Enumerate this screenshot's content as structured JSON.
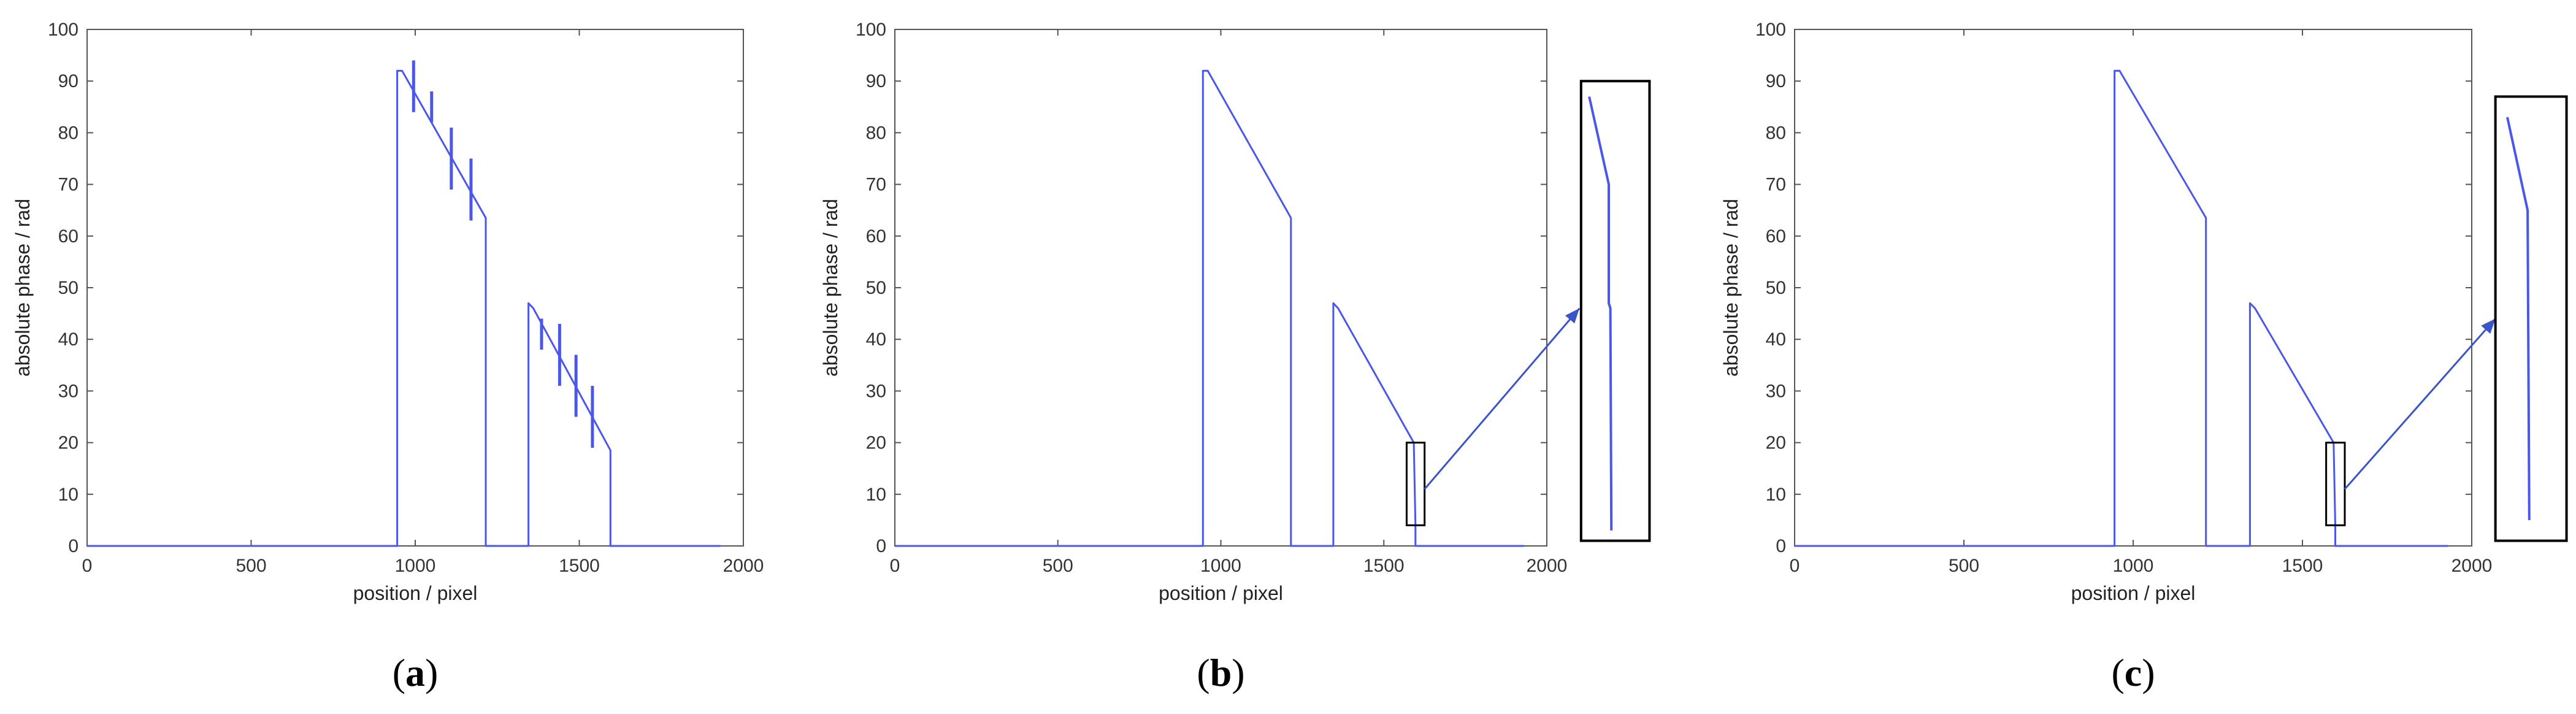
{
  "chart_data": [
    {
      "panel": "a",
      "type": "line",
      "caption": {
        "open": "(",
        "letter": "a",
        "close": ")"
      },
      "xlabel": "position / pixel",
      "ylabel": "absolute phase / rad",
      "xlim": [
        0,
        2000
      ],
      "ylim": [
        0,
        100
      ],
      "xticks": [
        0,
        500,
        1000,
        1500,
        2000
      ],
      "yticks": [
        0,
        10,
        20,
        30,
        40,
        50,
        60,
        70,
        80,
        90,
        100
      ],
      "grid": false,
      "series": [
        {
          "color": "#4a57e8",
          "points": [
            [
              0,
              0
            ],
            [
              945,
              0
            ],
            [
              945,
              92
            ],
            [
              960,
              92
            ],
            [
              1215,
              63.5
            ],
            [
              1215,
              0
            ],
            [
              1345,
              0
            ],
            [
              1345,
              47
            ],
            [
              1360,
              46
            ],
            [
              1595,
              18.5
            ],
            [
              1595,
              0
            ],
            [
              1930,
              0
            ]
          ]
        }
      ],
      "spikes": [
        {
          "x": 995,
          "y1": 84,
          "y2": 94
        },
        {
          "x": 1050,
          "y1": 82,
          "y2": 88
        },
        {
          "x": 1110,
          "y1": 69,
          "y2": 81
        },
        {
          "x": 1170,
          "y1": 63,
          "y2": 75
        },
        {
          "x": 1385,
          "y1": 38,
          "y2": 44
        },
        {
          "x": 1440,
          "y1": 31,
          "y2": 43
        },
        {
          "x": 1490,
          "y1": 25,
          "y2": 37
        },
        {
          "x": 1540,
          "y1": 19,
          "y2": 31
        }
      ]
    },
    {
      "panel": "b",
      "type": "line",
      "caption": {
        "open": "(",
        "letter": "b",
        "close": ")"
      },
      "xlabel": "position / pixel",
      "ylabel": "absolute phase / rad",
      "xlim": [
        0,
        2000
      ],
      "ylim": [
        0,
        100
      ],
      "xticks": [
        0,
        500,
        1000,
        1500,
        2000
      ],
      "yticks": [
        0,
        10,
        20,
        30,
        40,
        50,
        60,
        70,
        80,
        90,
        100
      ],
      "grid": false,
      "series": [
        {
          "color": "#4a57e8",
          "points": [
            [
              0,
              0
            ],
            [
              945,
              0
            ],
            [
              945,
              92
            ],
            [
              960,
              92
            ],
            [
              1215,
              63.5
            ],
            [
              1215,
              0
            ],
            [
              1345,
              0
            ],
            [
              1345,
              47
            ],
            [
              1360,
              46
            ],
            [
              1592,
              20
            ],
            [
              1597,
              4
            ],
            [
              1597,
              0
            ],
            [
              1930,
              0
            ]
          ]
        }
      ],
      "highlight_box": {
        "x0": 1570,
        "x1": 1625,
        "y0": 4,
        "y1": 20
      },
      "inset": {
        "box": {
          "x0": 2105,
          "x1": 2315,
          "y0": 1,
          "y1": 90
        },
        "curve": [
          [
            2130,
            87
          ],
          [
            2190,
            70
          ],
          [
            2190,
            47
          ],
          [
            2195,
            46
          ],
          [
            2198,
            3
          ]
        ],
        "arrow": {
          "from": [
            1625,
            11
          ],
          "to": [
            2100,
            46
          ]
        }
      }
    },
    {
      "panel": "c",
      "type": "line",
      "caption": {
        "open": "(",
        "letter": "c",
        "close": ")"
      },
      "xlabel": "position / pixel",
      "ylabel": "absolute phase / rad",
      "xlim": [
        0,
        2000
      ],
      "ylim": [
        0,
        100
      ],
      "xticks": [
        0,
        500,
        1000,
        1500,
        2000
      ],
      "yticks": [
        0,
        10,
        20,
        30,
        40,
        50,
        60,
        70,
        80,
        90,
        100
      ],
      "grid": false,
      "series": [
        {
          "color": "#4a57e8",
          "points": [
            [
              0,
              0
            ],
            [
              945,
              0
            ],
            [
              945,
              92
            ],
            [
              960,
              92
            ],
            [
              1215,
              63.5
            ],
            [
              1215,
              0
            ],
            [
              1345,
              0
            ],
            [
              1345,
              47
            ],
            [
              1360,
              46
            ],
            [
              1592,
              20
            ],
            [
              1597,
              4
            ],
            [
              1597,
              0
            ],
            [
              1930,
              0
            ]
          ]
        }
      ],
      "highlight_box": {
        "x0": 1570,
        "x1": 1625,
        "y0": 4,
        "y1": 20
      },
      "inset": {
        "box": {
          "x0": 2070,
          "x1": 2280,
          "y0": 1,
          "y1": 87
        },
        "curve": [
          [
            2105,
            83
          ],
          [
            2165,
            65
          ],
          [
            2170,
            5
          ]
        ],
        "arrow": {
          "from": [
            1625,
            11
          ],
          "to": [
            2070,
            44
          ]
        }
      }
    }
  ]
}
